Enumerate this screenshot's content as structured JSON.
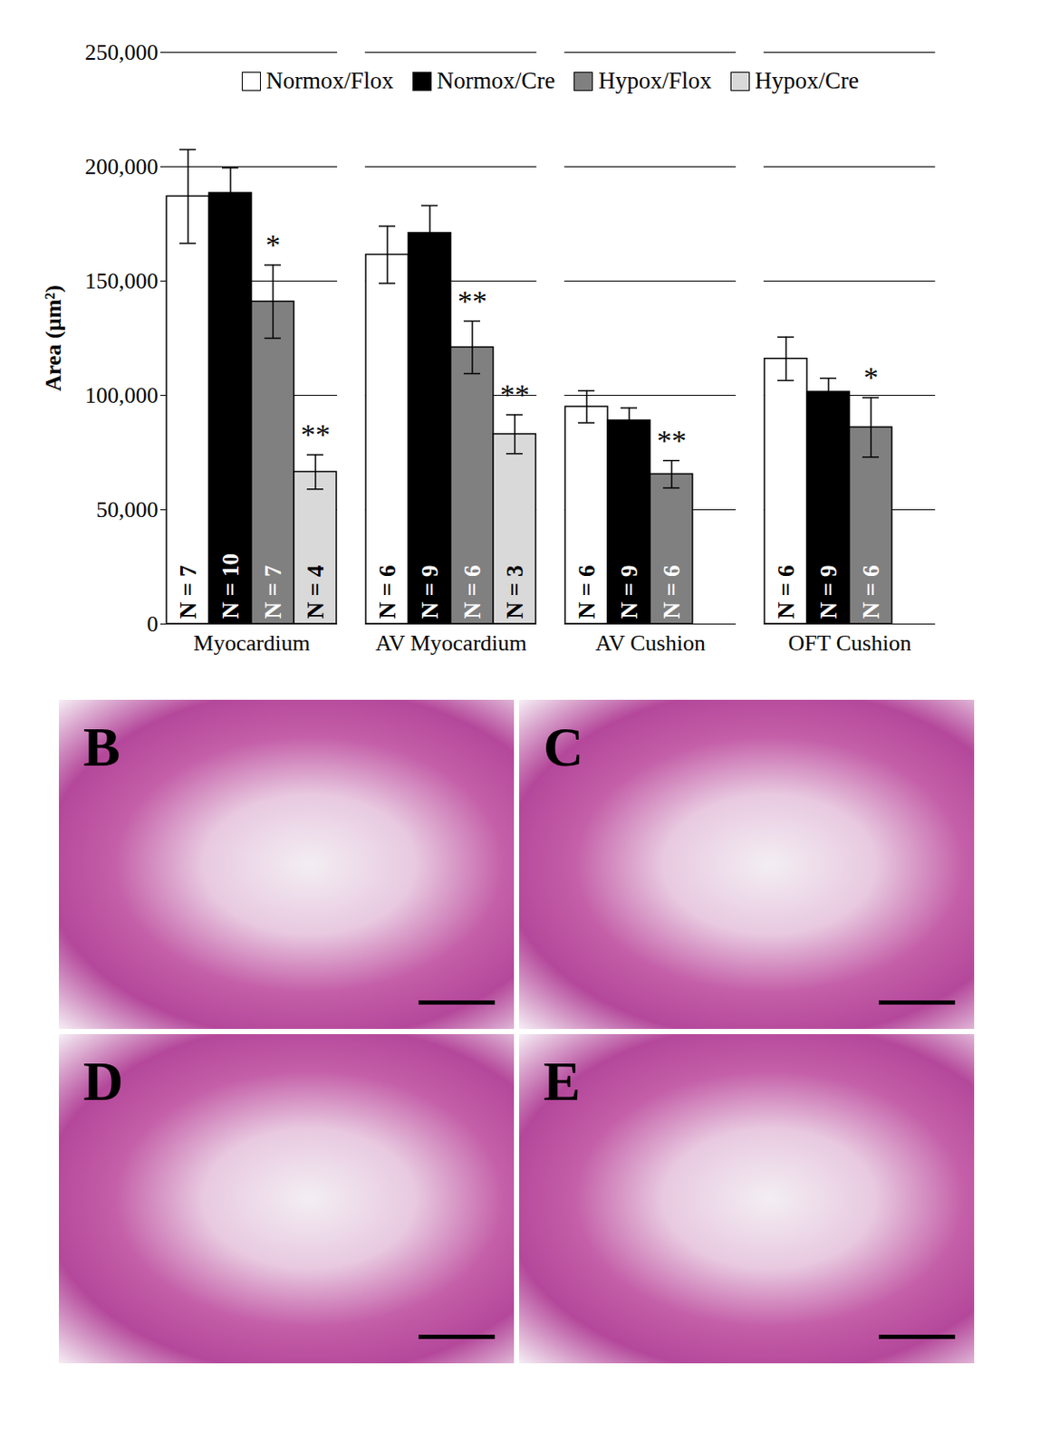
{
  "chart_data": {
    "type": "bar",
    "categories": [
      "Myocardium",
      "AV Myocardium",
      "AV Cushion",
      "OFT Cushion"
    ],
    "series": [
      {
        "name": "Normox/Flox",
        "color": "#ffffff",
        "values": [
          187000,
          161500,
          95000,
          116000
        ],
        "errors": [
          20500,
          12500,
          7000,
          9500
        ],
        "n_labels": [
          "N = 7",
          "N = 6",
          "N = 6",
          "N = 6"
        ],
        "significance": [
          null,
          null,
          null,
          null
        ]
      },
      {
        "name": "Normox/Cre",
        "color": "#000000",
        "values": [
          188500,
          171000,
          89000,
          101500
        ],
        "errors": [
          11000,
          12000,
          5500,
          6000
        ],
        "n_labels": [
          "N = 10",
          "N = 9",
          "N = 9",
          "N = 9"
        ],
        "significance": [
          null,
          null,
          null,
          null
        ]
      },
      {
        "name": "Hypox/Flox",
        "color": "#808080",
        "values": [
          141000,
          121000,
          65500,
          86000
        ],
        "errors": [
          16000,
          11500,
          6000,
          13000
        ],
        "n_labels": [
          "N = 7",
          "N = 6",
          "N = 6",
          "N = 6"
        ],
        "significance": [
          "*",
          "**",
          "**",
          "*"
        ]
      },
      {
        "name": "Hypox/Cre",
        "color": "#d9d9d9",
        "values": [
          66500,
          83000,
          null,
          null
        ],
        "errors": [
          7500,
          8500,
          null,
          null
        ],
        "n_labels": [
          "N = 4",
          "N = 3",
          null,
          null
        ],
        "significance": [
          "**",
          "**",
          null,
          null
        ]
      }
    ],
    "y_label": "Area (µm²)",
    "ylim": [
      0,
      250000
    ],
    "yticks": [
      0,
      {
        "value": 50000,
        "label": "50,000"
      },
      {
        "value": 100000,
        "label": "100,000"
      },
      {
        "value": 150000,
        "label": "150,000"
      },
      {
        "value": 200000,
        "label": "200,000"
      },
      {
        "value": 250000,
        "label": "250,000"
      }
    ],
    "grid": true,
    "legend": "top"
  },
  "panels": [
    "B",
    "C",
    "D",
    "E"
  ]
}
